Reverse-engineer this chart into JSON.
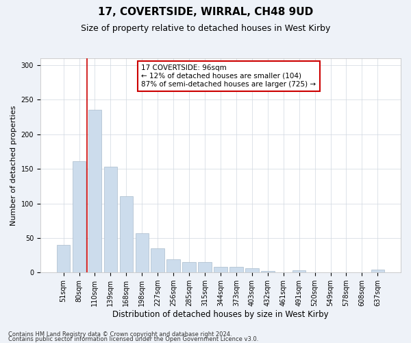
{
  "title1": "17, COVERTSIDE, WIRRAL, CH48 9UD",
  "title2": "Size of property relative to detached houses in West Kirby",
  "xlabel": "Distribution of detached houses by size in West Kirby",
  "ylabel": "Number of detached properties",
  "categories": [
    "51sqm",
    "80sqm",
    "110sqm",
    "139sqm",
    "168sqm",
    "198sqm",
    "227sqm",
    "256sqm",
    "285sqm",
    "315sqm",
    "344sqm",
    "373sqm",
    "403sqm",
    "432sqm",
    "461sqm",
    "491sqm",
    "520sqm",
    "549sqm",
    "578sqm",
    "608sqm",
    "637sqm"
  ],
  "values": [
    40,
    161,
    236,
    153,
    110,
    57,
    35,
    19,
    15,
    15,
    8,
    8,
    6,
    2,
    0,
    3,
    0,
    0,
    0,
    0,
    4
  ],
  "bar_color": "#ccdcec",
  "bar_edge_color": "#aabccc",
  "vline_x": 1.5,
  "vline_color": "#cc0000",
  "annotation_text": "17 COVERTSIDE: 96sqm\n← 12% of detached houses are smaller (104)\n87% of semi-detached houses are larger (725) →",
  "annotation_box_color": "#ffffff",
  "annotation_box_edge": "#cc0000",
  "ylim": [
    0,
    310
  ],
  "yticks": [
    0,
    50,
    100,
    150,
    200,
    250,
    300
  ],
  "footnote1": "Contains HM Land Registry data © Crown copyright and database right 2024.",
  "footnote2": "Contains public sector information licensed under the Open Government Licence v3.0.",
  "bg_color": "#eef2f8",
  "plot_bg_color": "#ffffff",
  "title1_fontsize": 11,
  "title2_fontsize": 9,
  "xlabel_fontsize": 8.5,
  "ylabel_fontsize": 8,
  "tick_fontsize": 7,
  "annot_fontsize": 7.5,
  "footnote_fontsize": 6
}
